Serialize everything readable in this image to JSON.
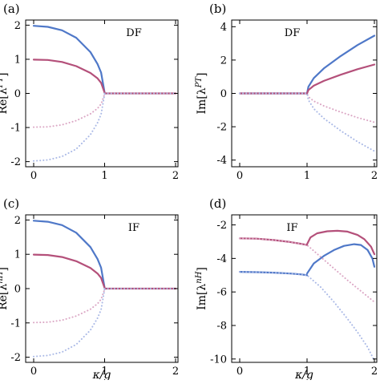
{
  "colors": {
    "blue": "#4f78c8",
    "red": "#b4507a",
    "blue_light": "#aab9e6",
    "red_light": "#dba6c4",
    "frame": "#000000"
  },
  "chart_data": [
    {
      "type": "line",
      "panel_label": "(a)",
      "annotation": "DF",
      "ylabel": "Re[λ^PT]",
      "xlabel": "",
      "xlim": [
        0,
        2
      ],
      "ylim": [
        -2.15,
        2.15
      ],
      "xticks": [
        "0",
        "1",
        "2"
      ],
      "yticks": [
        "-2",
        "-1",
        "0",
        "1",
        "2"
      ],
      "series": [
        {
          "color": "blue",
          "style": "solid",
          "x": [
            0,
            0.2,
            0.4,
            0.6,
            0.8,
            0.9,
            0.95,
            1.0
          ],
          "y": [
            1.98,
            1.95,
            1.85,
            1.63,
            1.21,
            0.86,
            0.61,
            0.02
          ]
        },
        {
          "color": "red",
          "style": "solid",
          "x": [
            0,
            0.2,
            0.4,
            0.6,
            0.8,
            0.9,
            0.95,
            1.0
          ],
          "y": [
            0.99,
            0.98,
            0.92,
            0.8,
            0.6,
            0.44,
            0.31,
            0.02
          ]
        },
        {
          "color": "red",
          "style": "solid",
          "x": [
            1.0,
            1.5,
            2.0
          ],
          "y": [
            0.0,
            0.0,
            0.0
          ]
        },
        {
          "color": "blue_light",
          "style": "dotted",
          "x": [
            1.0,
            1.5,
            2.0
          ],
          "y": [
            0.0,
            0.0,
            0.0
          ]
        },
        {
          "color": "red_light",
          "style": "dotted",
          "x": [
            0,
            0.2,
            0.4,
            0.6,
            0.8,
            0.9,
            0.95,
            1.0
          ],
          "y": [
            -0.99,
            -0.98,
            -0.92,
            -0.8,
            -0.6,
            -0.44,
            -0.31,
            -0.02
          ]
        },
        {
          "color": "blue_light",
          "style": "dotted",
          "x": [
            0,
            0.2,
            0.4,
            0.6,
            0.8,
            0.9,
            0.95,
            1.0
          ],
          "y": [
            -1.98,
            -1.95,
            -1.85,
            -1.63,
            -1.21,
            -0.86,
            -0.61,
            -0.02
          ]
        }
      ]
    },
    {
      "type": "line",
      "panel_label": "(b)",
      "annotation": "DF",
      "ylabel": "Im[λ^PT]",
      "xlabel": "",
      "xlim": [
        0,
        2
      ],
      "ylim": [
        -4.4,
        4.4
      ],
      "xticks": [
        "0",
        "1",
        "2"
      ],
      "yticks": [
        "-4",
        "-2",
        "0",
        "2",
        "4"
      ],
      "series": [
        {
          "color": "blue",
          "style": "solid",
          "x": [
            0,
            1.0,
            1.02,
            1.1,
            1.25,
            1.5,
            1.75,
            2.0
          ],
          "y": [
            0,
            0,
            0.4,
            0.92,
            1.5,
            2.24,
            2.9,
            3.46
          ]
        },
        {
          "color": "red",
          "style": "solid",
          "x": [
            0,
            1.0,
            1.02,
            1.1,
            1.25,
            1.5,
            1.75,
            2.0
          ],
          "y": [
            0,
            0,
            0.2,
            0.46,
            0.75,
            1.12,
            1.45,
            1.73
          ]
        },
        {
          "color": "red_light",
          "style": "dotted",
          "x": [
            0,
            1.0,
            1.02,
            1.1,
            1.25,
            1.5,
            1.75,
            2.0
          ],
          "y": [
            0,
            0,
            -0.2,
            -0.46,
            -0.75,
            -1.12,
            -1.45,
            -1.73
          ]
        },
        {
          "color": "blue_light",
          "style": "dotted",
          "x": [
            0,
            1.0,
            1.02,
            1.1,
            1.25,
            1.5,
            1.75,
            2.0
          ],
          "y": [
            0,
            0,
            -0.4,
            -0.92,
            -1.5,
            -2.24,
            -2.9,
            -3.46
          ]
        }
      ]
    },
    {
      "type": "line",
      "panel_label": "(c)",
      "annotation": "IF",
      "ylabel": "Re[λ^nH]",
      "xlabel": "κ/g",
      "xlim": [
        0,
        2
      ],
      "ylim": [
        -2.15,
        2.15
      ],
      "xticks": [
        "0",
        "1",
        "2"
      ],
      "yticks": [
        "-2",
        "-1",
        "0",
        "1",
        "2"
      ],
      "series": [
        {
          "color": "blue",
          "style": "solid",
          "x": [
            0,
            0.2,
            0.4,
            0.6,
            0.8,
            0.9,
            0.95,
            1.0
          ],
          "y": [
            1.98,
            1.95,
            1.85,
            1.63,
            1.21,
            0.86,
            0.61,
            0.02
          ]
        },
        {
          "color": "red",
          "style": "solid",
          "x": [
            0,
            0.2,
            0.4,
            0.6,
            0.8,
            0.9,
            0.95,
            1.0
          ],
          "y": [
            0.99,
            0.98,
            0.92,
            0.8,
            0.6,
            0.44,
            0.31,
            0.02
          ]
        },
        {
          "color": "red",
          "style": "solid",
          "x": [
            1.0,
            1.5,
            2.0
          ],
          "y": [
            0.0,
            0.0,
            0.0
          ]
        },
        {
          "color": "blue_light",
          "style": "dotted",
          "x": [
            1.0,
            1.5,
            2.0
          ],
          "y": [
            0.0,
            0.0,
            0.0
          ]
        },
        {
          "color": "red_light",
          "style": "dotted",
          "x": [
            0,
            0.2,
            0.4,
            0.6,
            0.8,
            0.9,
            0.95,
            1.0
          ],
          "y": [
            -0.99,
            -0.98,
            -0.92,
            -0.8,
            -0.6,
            -0.44,
            -0.31,
            -0.02
          ]
        },
        {
          "color": "blue_light",
          "style": "dotted",
          "x": [
            0,
            0.2,
            0.4,
            0.6,
            0.8,
            0.9,
            0.95,
            1.0
          ],
          "y": [
            -1.98,
            -1.95,
            -1.85,
            -1.63,
            -1.21,
            -0.86,
            -0.61,
            -0.02
          ]
        }
      ]
    },
    {
      "type": "line",
      "panel_label": "(d)",
      "annotation": "IF",
      "ylabel": "Im[λ^nH]",
      "xlabel": "κ/g",
      "xlim": [
        0,
        2
      ],
      "ylim": [
        -10.2,
        -1.4
      ],
      "xticks": [
        "0",
        "1",
        "2"
      ],
      "yticks": [
        "-2",
        "-4",
        "-6",
        "-8",
        "-10"
      ],
      "series": [
        {
          "color": "red",
          "style": "solid",
          "x": [
            0,
            0.25,
            0.5,
            0.75,
            0.9,
            1.0
          ],
          "y": [
            -2.8,
            -2.82,
            -2.9,
            -3.02,
            -3.12,
            -3.2
          ]
        },
        {
          "color": "red",
          "style": "solid",
          "x": [
            1.0,
            1.05,
            1.15,
            1.3,
            1.45,
            1.6,
            1.75,
            1.85,
            1.95,
            2.0
          ],
          "y": [
            -3.15,
            -2.75,
            -2.5,
            -2.38,
            -2.35,
            -2.4,
            -2.6,
            -2.85,
            -3.3,
            -3.75
          ]
        },
        {
          "color": "blue",
          "style": "solid",
          "x": [
            0,
            0.25,
            0.5,
            0.75,
            0.9,
            1.0
          ],
          "y": [
            -4.8,
            -4.82,
            -4.85,
            -4.9,
            -4.95,
            -5.0
          ]
        },
        {
          "color": "blue",
          "style": "solid",
          "x": [
            1.0,
            1.1,
            1.25,
            1.4,
            1.55,
            1.7,
            1.8,
            1.9,
            1.97,
            2.0
          ],
          "y": [
            -4.9,
            -4.3,
            -3.85,
            -3.5,
            -3.25,
            -3.15,
            -3.2,
            -3.5,
            -4.0,
            -4.5
          ]
        },
        {
          "color": "red_light",
          "style": "dotted",
          "x": [
            0,
            0.25,
            0.5,
            0.75,
            1.0,
            1.2,
            1.4,
            1.6,
            1.8,
            2.0
          ],
          "y": [
            -2.8,
            -2.82,
            -2.9,
            -3.02,
            -3.2,
            -3.9,
            -4.6,
            -5.3,
            -5.95,
            -6.6
          ]
        },
        {
          "color": "blue_light",
          "style": "dotted",
          "x": [
            0,
            0.25,
            0.5,
            0.75,
            1.0,
            1.2,
            1.4,
            1.6,
            1.75,
            1.9,
            2.0
          ],
          "y": [
            -4.8,
            -4.82,
            -4.85,
            -4.9,
            -5.0,
            -5.7,
            -6.6,
            -7.6,
            -8.4,
            -9.3,
            -10.1
          ]
        }
      ]
    }
  ]
}
